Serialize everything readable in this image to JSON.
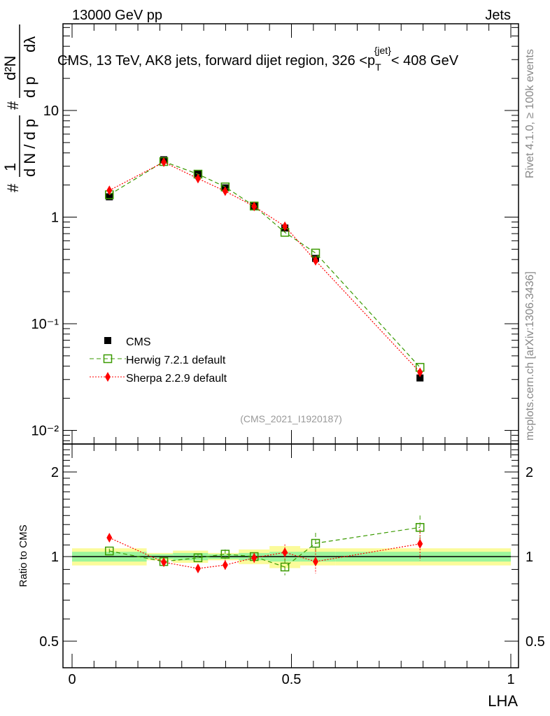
{
  "header": {
    "left": "13000 GeV pp",
    "right": "Jets"
  },
  "side_labels": {
    "top": "Rivet 4.1.0, ≥ 100k events",
    "bottom": "mcplots.cern.ch [arXiv:1306.3436]"
  },
  "chart_data": [
    {
      "type": "line",
      "title": "CMS, 13 TeV, AK8 jets, forward dijet region, 326 <p_T^{jet}< 408 GeV",
      "title_parts": {
        "main": "CMS, 13 TeV, AK8 jets, forward dijet region, 326 <p",
        "sub": "T",
        "sup": "{jet}",
        "tail": "< 408 GeV"
      },
      "ylabel": "1/dN/dp_T # d2N/dp_T dλ",
      "ylabel_parts": {
        "hash": "#",
        "one": "1",
        "den": "d N / d p",
        "num2": "#",
        "num": "d²N",
        "den2": "d p",
        "dl": "dλ",
        "T": "T"
      },
      "yscale": "log",
      "ylim": [
        0.0074,
        64
      ],
      "xlim": [
        -0.02,
        1.02
      ],
      "yticks": [
        {
          "v": 10,
          "label": "10"
        },
        {
          "v": 1,
          "label": "1"
        },
        {
          "v": 0.1,
          "label": "10⁻¹"
        },
        {
          "v": 0.01,
          "label": "10⁻²"
        }
      ],
      "x": [
        0.085,
        0.209,
        0.287,
        0.349,
        0.415,
        0.485,
        0.555,
        0.793
      ],
      "series": [
        {
          "name": "CMS",
          "color": "#000000",
          "values": [
            1.55,
            3.45,
            2.55,
            1.88,
            1.27,
            0.79,
            0.41,
            0.031
          ]
        },
        {
          "name": "Herwig 7.2.1 default",
          "color": "#3a9a00",
          "values": [
            1.62,
            3.32,
            2.53,
            1.92,
            1.27,
            0.72,
            0.46,
            0.039
          ]
        },
        {
          "name": "Sherpa 2.2.9 default",
          "color": "#ff0000",
          "values": [
            1.78,
            3.28,
            2.3,
            1.75,
            1.26,
            0.82,
            0.39,
            0.035
          ]
        }
      ],
      "legend": "bottom-left",
      "annotation": "(CMS_2021_I1920187)"
    },
    {
      "type": "line",
      "ylabel": "Ratio to CMS",
      "xlabel": "LHA",
      "yscale": "log",
      "ylim": [
        0.4,
        2.5
      ],
      "yticks": [
        {
          "v": 2,
          "label": "2"
        },
        {
          "v": 1,
          "label": "1"
        },
        {
          "v": 0.5,
          "label": "0.5"
        }
      ],
      "xticks": [
        {
          "v": 0,
          "label": "0"
        },
        {
          "v": 0.5,
          "label": "0.5"
        },
        {
          "v": 1,
          "label": "1"
        }
      ],
      "bins": [
        [
          0,
          0.17
        ],
        [
          0.17,
          0.23
        ],
        [
          0.23,
          0.31
        ],
        [
          0.31,
          0.38
        ],
        [
          0.38,
          0.45
        ],
        [
          0.45,
          0.52
        ],
        [
          0.52,
          0.6
        ],
        [
          0.6,
          1.0
        ]
      ],
      "band_inner": [
        0.04,
        0.02,
        0.03,
        0.02,
        0.03,
        0.04,
        0.04,
        0.04
      ],
      "band_outer": [
        0.07,
        0.03,
        0.05,
        0.03,
        0.06,
        0.09,
        0.07,
        0.07
      ],
      "x": [
        0.085,
        0.209,
        0.287,
        0.349,
        0.415,
        0.485,
        0.555,
        0.793
      ],
      "series": [
        {
          "name": "Herwig 7.2.1 default",
          "color": "#3a9a00",
          "values": [
            1.047,
            0.96,
            0.99,
            1.02,
            1.0,
            0.918,
            1.115,
            1.27
          ],
          "err": [
            0.02,
            0.02,
            0.03,
            0.04,
            0.03,
            0.06,
            0.1,
            0.13
          ]
        },
        {
          "name": "Sherpa 2.2.9 default",
          "color": "#ff0000",
          "values": [
            1.167,
            0.955,
            0.907,
            0.933,
            0.99,
            1.035,
            0.96,
            1.11
          ],
          "err": [
            0.03,
            0.02,
            0.03,
            0.04,
            0.04,
            0.07,
            0.09,
            0.14
          ]
        }
      ]
    }
  ]
}
